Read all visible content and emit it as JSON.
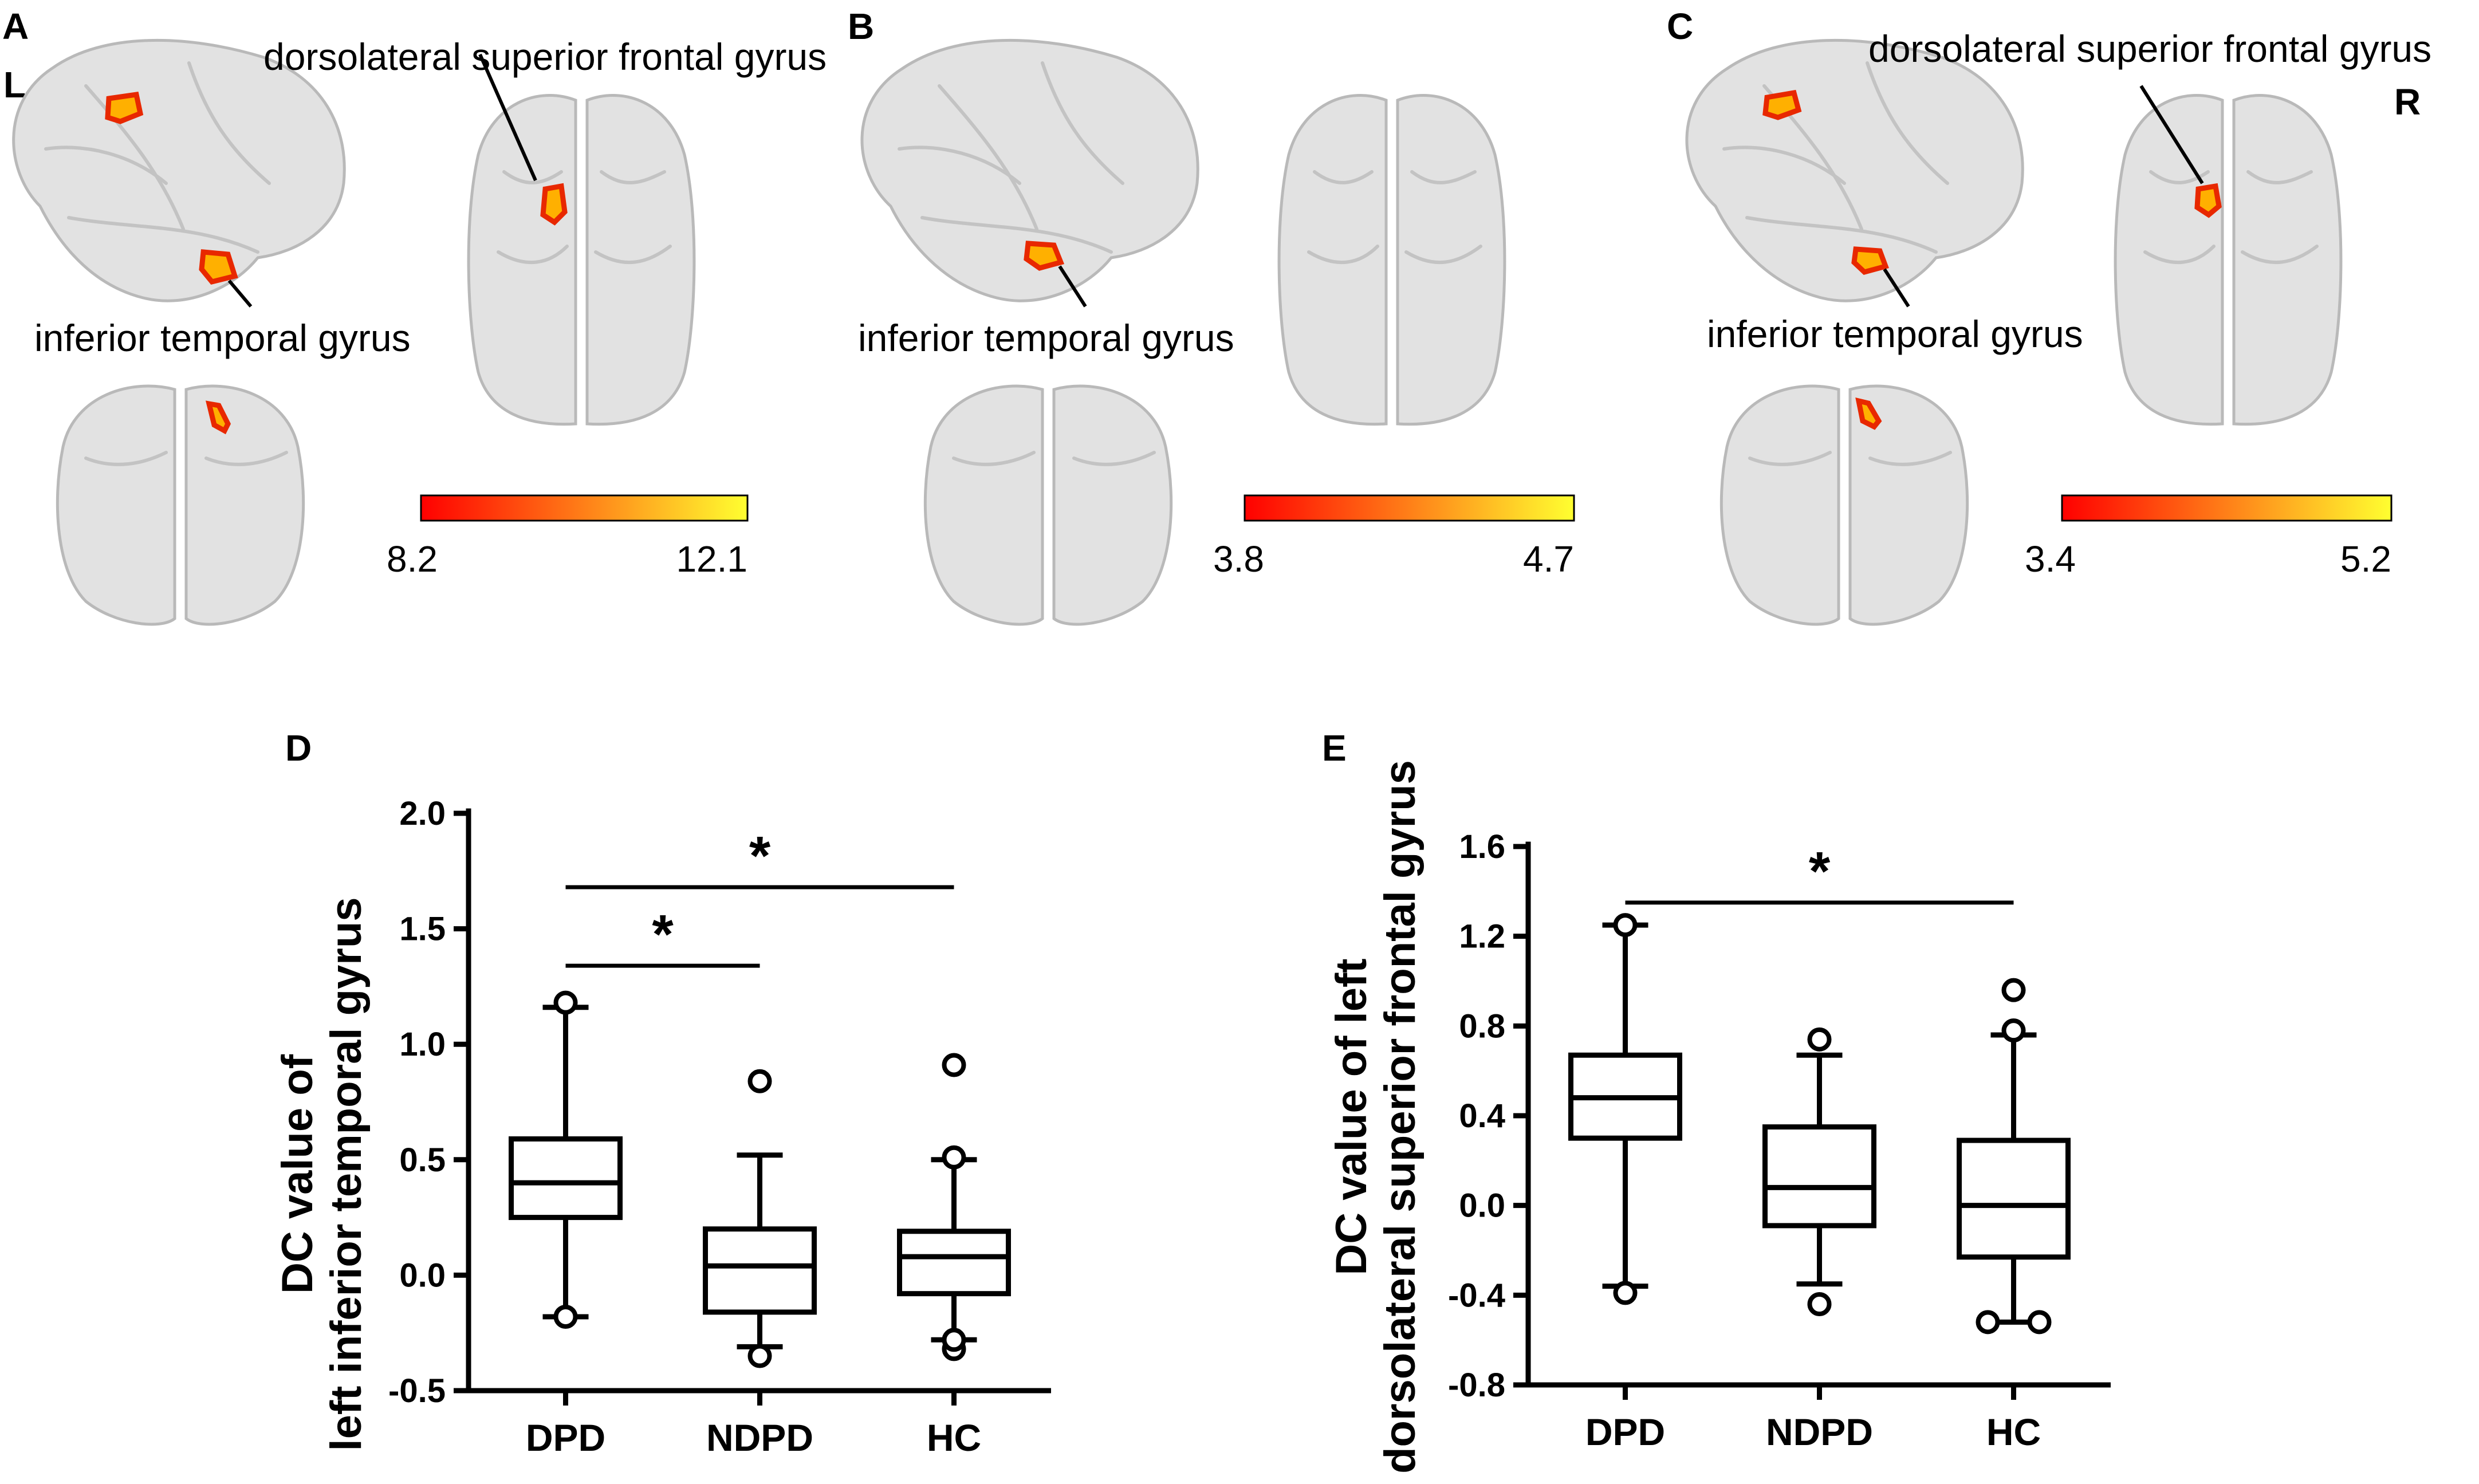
{
  "brain_panels": [
    {
      "letter": "A",
      "hemisphere_label": "L",
      "label_superior": "dorsolateral superior frontal gyrus",
      "label_temporal": "inferior temporal gyrus",
      "colorbar": {
        "min": "8.2",
        "max": "12.1",
        "low_color": "#ff0000",
        "high_color": "#ffff30"
      }
    },
    {
      "letter": "B",
      "label_temporal": "inferior temporal gyrus",
      "colorbar": {
        "min": "3.8",
        "max": "4.7",
        "low_color": "#ff0000",
        "high_color": "#ffff30"
      }
    },
    {
      "letter": "C",
      "hemisphere_label": "R",
      "label_superior": "dorsolateral superior frontal gyrus",
      "label_temporal": "inferior temporal gyrus",
      "colorbar": {
        "min": "3.4",
        "max": "5.2",
        "low_color": "#ff0000",
        "high_color": "#ffff30"
      }
    }
  ],
  "chart_data": [
    {
      "type": "box",
      "panel": "D",
      "ylabel_line1": "DC value of",
      "ylabel_line2": "left inferior temporal gyrus",
      "ylim": [
        -0.5,
        2.0
      ],
      "yticks": [
        "-0.5",
        "0.0",
        "0.5",
        "1.0",
        "1.5",
        "2.0"
      ],
      "categories": [
        "DPD",
        "NDPD",
        "HC"
      ],
      "boxes": [
        {
          "group": "DPD",
          "whisker_low": -0.18,
          "q1": 0.25,
          "median": 0.4,
          "q3": 0.59,
          "whisker_high": 1.16,
          "outliers": [
            -0.18,
            1.18
          ]
        },
        {
          "group": "NDPD",
          "whisker_low": -0.31,
          "q1": -0.16,
          "median": 0.04,
          "q3": 0.2,
          "whisker_high": 0.52,
          "outliers": [
            -0.35,
            0.84
          ]
        },
        {
          "group": "HC",
          "whisker_low": -0.28,
          "q1": -0.08,
          "median": 0.08,
          "q3": 0.19,
          "whisker_high": 0.5,
          "outliers": [
            -0.32,
            -0.28,
            0.51,
            0.91
          ]
        }
      ],
      "significance": [
        {
          "from": "DPD",
          "to": "NDPD",
          "label": "*",
          "y": 1.34
        },
        {
          "from": "DPD",
          "to": "HC",
          "label": "*",
          "y": 1.68
        }
      ]
    },
    {
      "type": "box",
      "panel": "E",
      "ylabel_line1": "DC value of left",
      "ylabel_line2": "dorsolateral superior frontal gyrus",
      "ylim": [
        -0.8,
        1.6
      ],
      "yticks": [
        "-0.8",
        "-0.4",
        "0.0",
        "0.4",
        "0.8",
        "1.2",
        "1.6"
      ],
      "categories": [
        "DPD",
        "NDPD",
        "HC"
      ],
      "boxes": [
        {
          "group": "DPD",
          "whisker_low": -0.36,
          "q1": 0.3,
          "median": 0.48,
          "q3": 0.67,
          "whisker_high": 1.25,
          "outliers": [
            -0.39,
            1.25
          ]
        },
        {
          "group": "NDPD",
          "whisker_low": -0.35,
          "q1": -0.09,
          "median": 0.08,
          "q3": 0.35,
          "whisker_high": 0.67,
          "outliers": [
            -0.44,
            0.74
          ]
        },
        {
          "group": "HC",
          "whisker_low": -0.52,
          "q1": -0.23,
          "median": 0.0,
          "q3": 0.29,
          "whisker_high": 0.76,
          "outliers": [
            -0.52,
            -0.52,
            0.78,
            0.96
          ]
        }
      ],
      "significance": [
        {
          "from": "DPD",
          "to": "HC",
          "label": "*",
          "y": 1.35
        }
      ]
    }
  ]
}
